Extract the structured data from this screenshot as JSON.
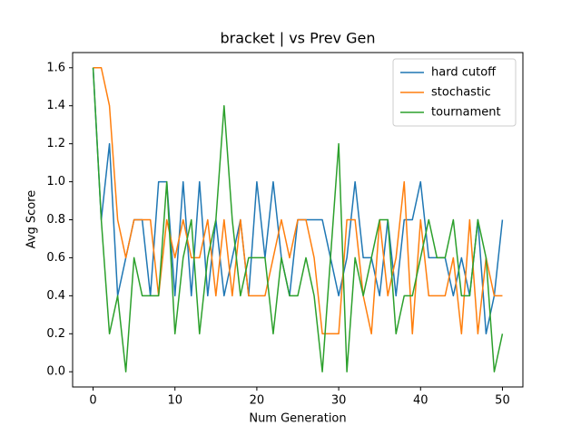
{
  "chart_data": {
    "type": "line",
    "title": "bracket | vs Prev Gen",
    "xlabel": "Num Generation",
    "ylabel": "Avg Score",
    "x": [
      0,
      1,
      2,
      3,
      4,
      5,
      6,
      7,
      8,
      9,
      10,
      11,
      12,
      13,
      14,
      15,
      16,
      17,
      18,
      19,
      20,
      21,
      22,
      23,
      24,
      25,
      26,
      27,
      28,
      29,
      30,
      31,
      32,
      33,
      34,
      35,
      36,
      37,
      38,
      39,
      40,
      41,
      42,
      43,
      44,
      45,
      46,
      47,
      48,
      49,
      50
    ],
    "series": [
      {
        "name": "hard cutoff",
        "color": "#1f77b4",
        "values": [
          1.6,
          0.8,
          1.2,
          0.4,
          0.6,
          0.8,
          0.8,
          0.4,
          1.0,
          1.0,
          0.4,
          1.0,
          0.4,
          1.0,
          0.4,
          0.8,
          0.4,
          0.6,
          0.8,
          0.4,
          1.0,
          0.6,
          1.0,
          0.6,
          0.4,
          0.8,
          0.8,
          0.8,
          0.8,
          0.6,
          0.4,
          0.6,
          1.0,
          0.6,
          0.6,
          0.4,
          0.8,
          0.4,
          0.8,
          0.8,
          1.0,
          0.6,
          0.6,
          0.6,
          0.4,
          0.6,
          0.4,
          0.8,
          0.2,
          0.4,
          0.8
        ]
      },
      {
        "name": "stochastic",
        "color": "#ff7f0e",
        "values": [
          1.6,
          1.6,
          1.4,
          0.8,
          0.6,
          0.8,
          0.8,
          0.8,
          0.4,
          0.8,
          0.6,
          0.8,
          0.6,
          0.6,
          0.8,
          0.4,
          0.8,
          0.4,
          0.8,
          0.4,
          0.4,
          0.4,
          0.6,
          0.8,
          0.6,
          0.8,
          0.8,
          0.6,
          0.2,
          0.2,
          0.2,
          0.8,
          0.8,
          0.4,
          0.2,
          0.8,
          0.4,
          0.6,
          1.0,
          0.2,
          0.8,
          0.4,
          0.4,
          0.4,
          0.6,
          0.2,
          0.8,
          0.2,
          0.6,
          0.4,
          0.4
        ]
      },
      {
        "name": "tournament",
        "color": "#2ca02c",
        "values": [
          1.6,
          0.8,
          0.2,
          0.4,
          0.0,
          0.6,
          0.4,
          0.4,
          0.4,
          1.0,
          0.2,
          0.6,
          0.8,
          0.2,
          0.6,
          0.8,
          1.4,
          0.8,
          0.4,
          0.6,
          0.6,
          0.6,
          0.2,
          0.6,
          0.4,
          0.4,
          0.6,
          0.4,
          0.0,
          0.6,
          1.2,
          0.0,
          0.6,
          0.4,
          0.6,
          0.8,
          0.8,
          0.2,
          0.4,
          0.4,
          0.6,
          0.8,
          0.6,
          0.6,
          0.8,
          0.4,
          0.4,
          0.8,
          0.6,
          0.0,
          0.2
        ]
      }
    ],
    "xlim": [
      -2.5,
      52.5
    ],
    "xticks": [
      0,
      10,
      20,
      30,
      40,
      50
    ],
    "ylim": [
      -0.08,
      1.68
    ],
    "yticks": [
      {
        "value": 0,
        "label": "0.0"
      },
      0.2,
      0.4,
      0.6,
      0.8,
      {
        "value": 1,
        "label": "1.0"
      },
      1.2,
      1.4,
      1.6
    ],
    "legend": "upper right",
    "grid": false
  }
}
